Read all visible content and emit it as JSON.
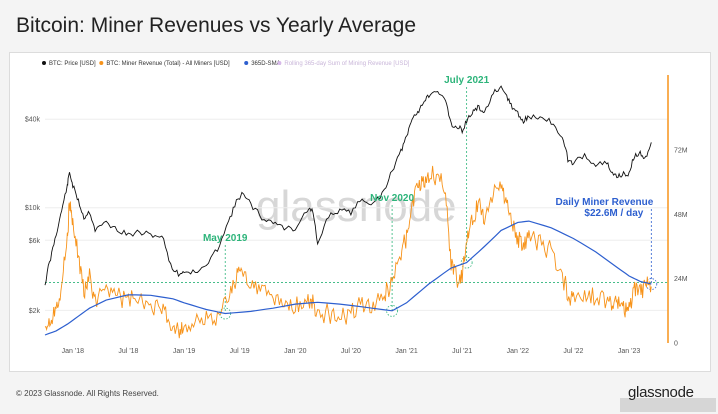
{
  "title": "Bitcoin: Miner Revenues vs Yearly Average",
  "footer": "© 2023 Glassnode. All Rights Reserved.",
  "brand": "glassnode",
  "watermark": "glassnode",
  "colors": {
    "price": "#111111",
    "miner_revenue": "#f7931a",
    "sma": "#2d5fcf",
    "rolling_sum": "#b45ad6",
    "annotation": "#2db47a",
    "annotation_blue": "#2d5fcf"
  },
  "chart_data": {
    "type": "line",
    "legend": [
      {
        "key": "price",
        "label": "BTC: Price [USD]",
        "faded": false
      },
      {
        "key": "miner_revenue",
        "label": "BTC: Miner Revenue (Total) - All Miners [USD]",
        "faded": false
      },
      {
        "key": "sma",
        "label": "365D-SMA",
        "faded": false
      },
      {
        "key": "rolling_sum",
        "label": "Rolling 365-day Sum of Mining Revenue [USD]",
        "faded": true
      }
    ],
    "x_ticks": [
      "Jan '18",
      "Jul '18",
      "Jan '19",
      "Jul '19",
      "Jan '20",
      "Jul '20",
      "Jan '21",
      "Jul '21",
      "Jan '22",
      "Jul '22",
      "Jan '23"
    ],
    "y_left_ticks": [
      "$2k",
      "$6k",
      "$10k",
      "$40k"
    ],
    "y_left_values": [
      2000,
      6000,
      10000,
      40000
    ],
    "y_left_scale": "log",
    "y_right_ticks": [
      "0",
      "24M",
      "48M",
      "72M"
    ],
    "y_right_values": [
      0,
      24,
      48,
      72
    ],
    "y_right_range": [
      0,
      100
    ],
    "x_range": [
      2017.75,
      2023.35
    ],
    "annotations": [
      {
        "label": "May 2019",
        "x": 2019.37,
        "color": "annotation"
      },
      {
        "label": "Nov 2020",
        "x": 2020.87,
        "color": "annotation"
      },
      {
        "label": "July 2021",
        "x": 2021.54,
        "color": "annotation"
      },
      {
        "label": "Daily Miner Revenue",
        "label2": "$22.6M / day",
        "x": 2023.2,
        "color": "annotation_blue"
      }
    ],
    "reference_level_usd_m": 22.6,
    "series": {
      "price": {
        "x": [
          2017.75,
          2017.8,
          2017.85,
          2017.9,
          2017.95,
          2017.97,
          2018.0,
          2018.05,
          2018.1,
          2018.15,
          2018.2,
          2018.3,
          2018.4,
          2018.5,
          2018.6,
          2018.7,
          2018.8,
          2018.88,
          2018.95,
          2019.0,
          2019.1,
          2019.2,
          2019.3,
          2019.4,
          2019.47,
          2019.52,
          2019.6,
          2019.7,
          2019.8,
          2019.9,
          2020.0,
          2020.1,
          2020.15,
          2020.2,
          2020.3,
          2020.4,
          2020.5,
          2020.6,
          2020.7,
          2020.8,
          2020.87,
          2020.95,
          2021.0,
          2021.05,
          2021.1,
          2021.15,
          2021.2,
          2021.28,
          2021.35,
          2021.4,
          2021.45,
          2021.5,
          2021.55,
          2021.6,
          2021.65,
          2021.7,
          2021.78,
          2021.85,
          2021.9,
          2021.95,
          2022.0,
          2022.05,
          2022.1,
          2022.2,
          2022.3,
          2022.4,
          2022.45,
          2022.5,
          2022.6,
          2022.7,
          2022.8,
          2022.85,
          2022.9,
          2022.95,
          2023.0,
          2023.05,
          2023.1,
          2023.15,
          2023.2
        ],
        "y": [
          3000,
          4500,
          6500,
          9500,
          14000,
          17500,
          14000,
          11000,
          8500,
          9500,
          7000,
          8000,
          7000,
          6500,
          6800,
          6500,
          6400,
          4000,
          3500,
          3700,
          3600,
          4000,
          5200,
          8000,
          11000,
          12500,
          10500,
          8500,
          8000,
          7300,
          7200,
          9500,
          9800,
          5500,
          8800,
          9500,
          9200,
          11500,
          10500,
          13000,
          18000,
          24000,
          30000,
          40000,
          45000,
          52000,
          58000,
          60000,
          55000,
          37000,
          35000,
          34000,
          40000,
          45000,
          48000,
          44000,
          60000,
          64000,
          58000,
          48000,
          44000,
          38000,
          42000,
          41000,
          38000,
          30000,
          21000,
          20000,
          23000,
          19500,
          20000,
          16800,
          16500,
          16800,
          17000,
          22500,
          23500,
          22000,
          27000
        ]
      },
      "miner_revenue": {
        "x": [
          2017.75,
          2017.8,
          2017.85,
          2017.9,
          2017.95,
          2017.97,
          2018.0,
          2018.05,
          2018.1,
          2018.15,
          2018.2,
          2018.3,
          2018.4,
          2018.5,
          2018.6,
          2018.7,
          2018.8,
          2018.88,
          2018.95,
          2019.0,
          2019.1,
          2019.2,
          2019.3,
          2019.4,
          2019.47,
          2019.52,
          2019.6,
          2019.7,
          2019.8,
          2019.9,
          2020.0,
          2020.1,
          2020.15,
          2020.2,
          2020.3,
          2020.4,
          2020.5,
          2020.6,
          2020.7,
          2020.8,
          2020.87,
          2020.95,
          2021.0,
          2021.05,
          2021.1,
          2021.15,
          2021.2,
          2021.28,
          2021.35,
          2021.4,
          2021.45,
          2021.5,
          2021.55,
          2021.6,
          2021.65,
          2021.7,
          2021.78,
          2021.85,
          2021.9,
          2021.95,
          2022.0,
          2022.05,
          2022.1,
          2022.2,
          2022.3,
          2022.4,
          2022.45,
          2022.5,
          2022.6,
          2022.7,
          2022.8,
          2022.85,
          2022.9,
          2022.95,
          2023.0,
          2023.05,
          2023.1,
          2023.15,
          2023.2
        ],
        "y": [
          7,
          9,
          13,
          22,
          40,
          52,
          44,
          32,
          20,
          24,
          16,
          22,
          18,
          16,
          15,
          14,
          12,
          7,
          5,
          6,
          7,
          8,
          11,
          17,
          24,
          27,
          22,
          19,
          17,
          14,
          13,
          16,
          15,
          10,
          11,
          11,
          11,
          14,
          13,
          17,
          23,
          32,
          40,
          52,
          58,
          60,
          62,
          63,
          58,
          30,
          24,
          26,
          40,
          47,
          52,
          46,
          56,
          60,
          52,
          44,
          40,
          36,
          40,
          38,
          34,
          25,
          18,
          15,
          18,
          16,
          17,
          14,
          15,
          13,
          14,
          19,
          21,
          20,
          22.6
        ]
      },
      "sma": {
        "x": [
          2017.75,
          2017.85,
          2017.95,
          2018.05,
          2018.15,
          2018.3,
          2018.5,
          2018.7,
          2018.9,
          2019.0,
          2019.2,
          2019.37,
          2019.6,
          2019.8,
          2020.0,
          2020.2,
          2020.4,
          2020.6,
          2020.87,
          2021.0,
          2021.2,
          2021.4,
          2021.54,
          2021.7,
          2021.85,
          2022.0,
          2022.1,
          2022.3,
          2022.5,
          2022.7,
          2022.9,
          2023.0,
          2023.1,
          2023.2
        ],
        "y": [
          3,
          4.5,
          7,
          10,
          13,
          16,
          18,
          17.8,
          16.5,
          15,
          12.5,
          11,
          11.8,
          13,
          14.5,
          15.2,
          14.5,
          13.5,
          12,
          15,
          22,
          28,
          30,
          36,
          42,
          45,
          45.5,
          43,
          39,
          34,
          28,
          25,
          23,
          22
        ]
      }
    }
  }
}
